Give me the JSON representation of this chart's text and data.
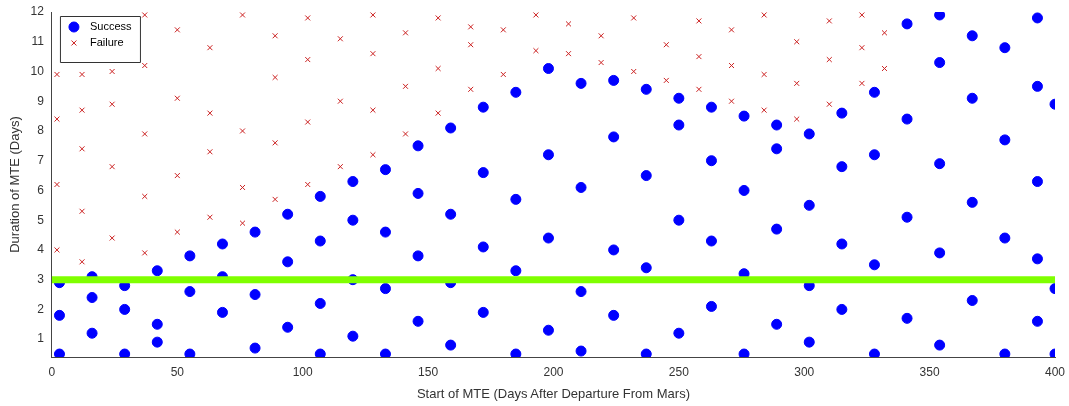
{
  "chart_data": {
    "type": "scatter",
    "xlabel": "Start of MTE (Days After Departure From Mars)",
    "ylabel": "Duration of MTE (Days)",
    "xlim": [
      0,
      400
    ],
    "xticks": [
      0,
      50,
      100,
      150,
      200,
      250,
      300,
      350,
      400
    ],
    "ylim": [
      0.4,
      12
    ],
    "yticks": [
      1,
      2,
      3,
      4,
      5,
      6,
      7,
      8,
      9,
      10,
      11,
      12
    ],
    "grid": false,
    "legend": "top left",
    "ref_lines": [
      {
        "axis": "y",
        "value": 3,
        "color": "#7fff00",
        "line_style": "solid"
      }
    ],
    "series": [
      {
        "name": "Success",
        "color": "#0000ff",
        "marker": "circle",
        "x": [
          3,
          3,
          3,
          16,
          16,
          16,
          29,
          29,
          29,
          42,
          42,
          42,
          55,
          55,
          55,
          68,
          68,
          68,
          81,
          81,
          81,
          94,
          94,
          94,
          107,
          107,
          107,
          107,
          120,
          120,
          120,
          120,
          133,
          133,
          133,
          133,
          146,
          146,
          146,
          146,
          159,
          159,
          159,
          159,
          172,
          172,
          172,
          172,
          185,
          185,
          185,
          185,
          198,
          198,
          198,
          198,
          211,
          211,
          211,
          211,
          224,
          224,
          224,
          224,
          237,
          237,
          237,
          237,
          250,
          250,
          250,
          250,
          263,
          263,
          263,
          263,
          276,
          276,
          276,
          276,
          289,
          289,
          289,
          289,
          302,
          302,
          302,
          302,
          315,
          315,
          315,
          315,
          328,
          328,
          328,
          328,
          341,
          341,
          341,
          341,
          354,
          354,
          354,
          354,
          354,
          367,
          367,
          367,
          367,
          380,
          380,
          380,
          380,
          393,
          393,
          393,
          393,
          393,
          400,
          400,
          400
        ],
        "values": [
          0.5,
          1.8,
          2.9,
          1.2,
          2.4,
          3.1,
          0.5,
          2.0,
          2.8,
          1.5,
          3.3,
          0.9,
          0.5,
          2.6,
          3.8,
          1.9,
          3.1,
          4.2,
          0.7,
          2.5,
          4.6,
          1.4,
          3.6,
          5.2,
          0.5,
          2.2,
          4.3,
          5.8,
          1.1,
          3.0,
          5.0,
          6.3,
          0.5,
          2.7,
          4.6,
          6.7,
          1.6,
          3.8,
          5.9,
          7.5,
          0.8,
          2.9,
          5.2,
          8.1,
          1.9,
          4.1,
          6.6,
          8.8,
          0.5,
          3.3,
          5.7,
          9.3,
          1.3,
          4.4,
          7.2,
          10.1,
          0.6,
          2.6,
          6.1,
          9.6,
          1.8,
          4.0,
          7.8,
          9.7,
          0.5,
          3.4,
          6.5,
          9.4,
          1.2,
          5.0,
          8.2,
          9.1,
          2.1,
          4.3,
          7.0,
          8.8,
          0.5,
          3.2,
          6.0,
          8.5,
          1.5,
          4.7,
          7.4,
          8.2,
          0.9,
          2.8,
          5.5,
          7.9,
          2.0,
          4.2,
          6.8,
          8.6,
          0.5,
          3.5,
          7.2,
          9.3,
          1.7,
          5.1,
          8.4,
          11.6,
          0.8,
          3.9,
          6.9,
          10.3,
          11.9,
          2.3,
          5.6,
          9.1,
          11.2,
          0.5,
          4.4,
          7.7,
          10.8,
          1.6,
          3.7,
          6.3,
          9.5,
          11.8,
          0.5,
          2.7,
          8.9
        ]
      },
      {
        "name": "Failure",
        "color": "#cc2222",
        "marker": "cross",
        "x": [
          2,
          2,
          2,
          2,
          12,
          12,
          12,
          12,
          12,
          24,
          24,
          24,
          24,
          37,
          37,
          37,
          37,
          37,
          50,
          50,
          50,
          50,
          63,
          63,
          63,
          63,
          76,
          76,
          76,
          76,
          89,
          89,
          89,
          89,
          102,
          102,
          102,
          102,
          115,
          115,
          115,
          128,
          128,
          128,
          128,
          141,
          141,
          141,
          154,
          154,
          154,
          167,
          167,
          167,
          180,
          180,
          193,
          193,
          206,
          206,
          219,
          219,
          232,
          232,
          245,
          245,
          258,
          258,
          258,
          271,
          271,
          271,
          284,
          284,
          284,
          297,
          297,
          297,
          310,
          310,
          310,
          323,
          323,
          323,
          332,
          332
        ],
        "values": [
          4.0,
          6.2,
          8.4,
          9.9,
          3.6,
          5.3,
          7.4,
          8.7,
          9.9,
          4.4,
          6.8,
          8.9,
          10.0,
          3.9,
          5.8,
          7.9,
          10.2,
          11.9,
          4.6,
          6.5,
          9.1,
          11.4,
          5.1,
          7.3,
          8.6,
          10.8,
          4.9,
          6.1,
          8.0,
          11.9,
          5.7,
          7.6,
          9.8,
          11.2,
          6.2,
          8.3,
          10.4,
          11.8,
          6.8,
          9.0,
          11.1,
          7.2,
          8.7,
          10.6,
          11.9,
          7.9,
          9.5,
          11.3,
          8.6,
          10.1,
          11.8,
          9.4,
          10.9,
          11.5,
          9.9,
          11.4,
          10.7,
          11.9,
          10.6,
          11.6,
          10.3,
          11.2,
          10.0,
          11.8,
          9.7,
          10.9,
          9.4,
          10.5,
          11.7,
          9.0,
          10.2,
          11.4,
          8.7,
          9.9,
          11.9,
          8.4,
          9.6,
          11.0,
          8.9,
          10.4,
          11.7,
          9.6,
          10.8,
          11.9,
          10.1,
          11.3
        ]
      }
    ]
  }
}
